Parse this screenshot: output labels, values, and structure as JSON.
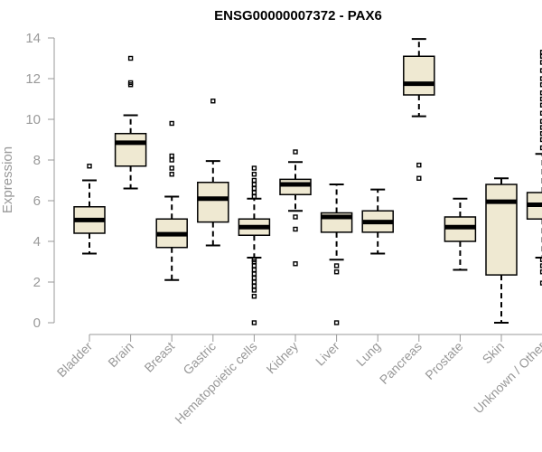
{
  "chart_data": {
    "type": "boxplot",
    "title": "ENSG00000007372 - PAX6",
    "xlabel": "",
    "ylabel": "Expression",
    "ylim": [
      0,
      14
    ],
    "yticks": [
      0,
      2,
      4,
      6,
      8,
      10,
      12,
      14
    ],
    "categories": [
      "Bladder",
      "Brain",
      "Breast",
      "Gastric",
      "Hematopoietic cells",
      "Kidney",
      "Liver",
      "Lung",
      "Pancreas",
      "Prostate",
      "Skin",
      "Unknown / Other"
    ],
    "colors": {
      "box_fill": "#efe9d2",
      "stroke": "#000000",
      "axis": "#999999"
    },
    "series": [
      {
        "name": "Bladder",
        "whisker_low": 3.4,
        "q1": 4.4,
        "median": 5.05,
        "q3": 5.7,
        "whisker_high": 7.0,
        "outliers": [
          7.7
        ]
      },
      {
        "name": "Brain",
        "whisker_low": 6.6,
        "q1": 7.7,
        "median": 8.85,
        "q3": 9.3,
        "whisker_high": 10.2,
        "outliers": [
          11.7,
          11.8,
          13.0
        ]
      },
      {
        "name": "Breast",
        "whisker_low": 2.1,
        "q1": 3.7,
        "median": 4.35,
        "q3": 5.1,
        "whisker_high": 6.2,
        "outliers": [
          7.3,
          7.6,
          8.0,
          8.2,
          9.8
        ]
      },
      {
        "name": "Gastric",
        "whisker_low": 3.8,
        "q1": 4.95,
        "median": 6.1,
        "q3": 6.9,
        "whisker_high": 7.95,
        "outliers": [
          10.9
        ]
      },
      {
        "name": "Hematopoietic cells",
        "whisker_low": 3.2,
        "q1": 4.3,
        "median": 4.7,
        "q3": 5.1,
        "whisker_high": 6.1,
        "outliers": [
          0.0,
          1.3,
          1.6,
          1.8,
          2.0,
          2.2,
          2.4,
          2.6,
          2.8,
          3.0,
          3.1,
          6.2,
          6.4,
          6.6,
          6.8,
          7.0,
          7.3,
          7.6
        ]
      },
      {
        "name": "Kidney",
        "whisker_low": 5.5,
        "q1": 6.3,
        "median": 6.8,
        "q3": 7.05,
        "whisker_high": 7.9,
        "outliers": [
          2.9,
          4.6,
          5.2,
          8.4
        ]
      },
      {
        "name": "Liver",
        "whisker_low": 3.1,
        "q1": 4.45,
        "median": 5.2,
        "q3": 5.4,
        "whisker_high": 6.8,
        "outliers": [
          0.0,
          2.5,
          2.8
        ]
      },
      {
        "name": "Lung",
        "whisker_low": 3.4,
        "q1": 4.45,
        "median": 4.95,
        "q3": 5.5,
        "whisker_high": 6.55,
        "outliers": []
      },
      {
        "name": "Pancreas",
        "whisker_low": 10.15,
        "q1": 11.2,
        "median": 11.75,
        "q3": 13.1,
        "whisker_high": 13.95,
        "outliers": [
          7.1,
          7.75
        ]
      },
      {
        "name": "Prostate",
        "whisker_low": 2.6,
        "q1": 4.0,
        "median": 4.7,
        "q3": 5.2,
        "whisker_high": 6.1,
        "outliers": []
      },
      {
        "name": "Skin",
        "whisker_low": 0.0,
        "q1": 2.35,
        "median": 5.95,
        "q3": 6.8,
        "whisker_high": 7.1,
        "outliers": []
      },
      {
        "name": "Unknown / Other",
        "whisker_low": 3.2,
        "q1": 5.1,
        "median": 5.8,
        "q3": 6.4,
        "whisker_high": 8.3,
        "outliers": [
          1.95,
          2.5,
          2.8,
          3.1,
          8.6,
          9.0,
          9.3,
          9.6,
          9.9,
          10.3,
          10.7,
          11.0,
          11.3,
          11.7,
          12.0,
          12.4,
          12.8,
          13.1,
          13.3
        ]
      }
    ]
  }
}
